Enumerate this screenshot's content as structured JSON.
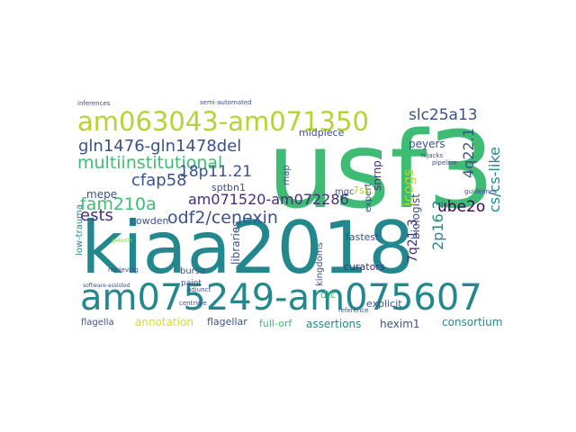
{
  "colors": {
    "background": "#ffffff",
    "yellow_green": "#b5d334",
    "green": "#3fbc73",
    "teal": "#23888e",
    "blue": "#3b518b",
    "purple": "#472c7a",
    "dark": "#440154",
    "lime": "#d0e11c",
    "light_green": "#7ad151"
  },
  "words": {
    "usf3": "usf3",
    "kiaa2018": "kiaa2018",
    "am075249": "am075249-am075607",
    "am063043": "am063043-am071350",
    "gln1476": "gln1476-gln1478del",
    "multiinstitutional": "multiinstitutional",
    "slc25a13": "slc25a13",
    "fam210a": "fam210a",
    "odf2": "odf2/cenexin",
    "am071520": "am071520-am072286",
    "cfap58": "cfap58",
    "ests": "ests",
    "p1121": "18p11.21",
    "icogs": "icogs",
    "cslike": "cs/cs-like",
    "q221": "4q22.1",
    "ube2o": "ube2o",
    "p162": "2p16.2",
    "q213": "7q21.3",
    "biologist": "biologist",
    "testis": "testis-enrichment",
    "cowden": "cowden",
    "mepe": "mepe",
    "sptbn1": "sptbn1",
    "midpiece": "midpiece",
    "snrnp": "snrnp",
    "peyers": "peyers",
    "hexim1": "hexim1",
    "consortium": "consortium",
    "assertions": "assertions",
    "fullorf": "full-orf",
    "flagellar": "flagellar",
    "annotation": "annotation",
    "flagella": "flagella",
    "dtc": "dtc",
    "curators": "curators",
    "kingdoms": "kingdoms",
    "libraries": "libraries",
    "lowtrauma": "low-trauma",
    "bursa": "bursa",
    "paint": "paint",
    "fastest": "fastest",
    "explicit": "explicit",
    "expert": "expert",
    "mgc": "mgc",
    "rnap": "rnap",
    "sk7": "7sk",
    "inferences": "inferences",
    "semiautomated": "semi-automated",
    "hijacks": "hijacks",
    "pipeline": "pipeline",
    "guidelines": "guidelines",
    "reference": "reference",
    "retrieving": "retrieving",
    "softwareassisted": "software-assisted",
    "centriole": "centriole",
    "adjunct": "adjunct",
    "gelsolin": "gelsolin"
  }
}
